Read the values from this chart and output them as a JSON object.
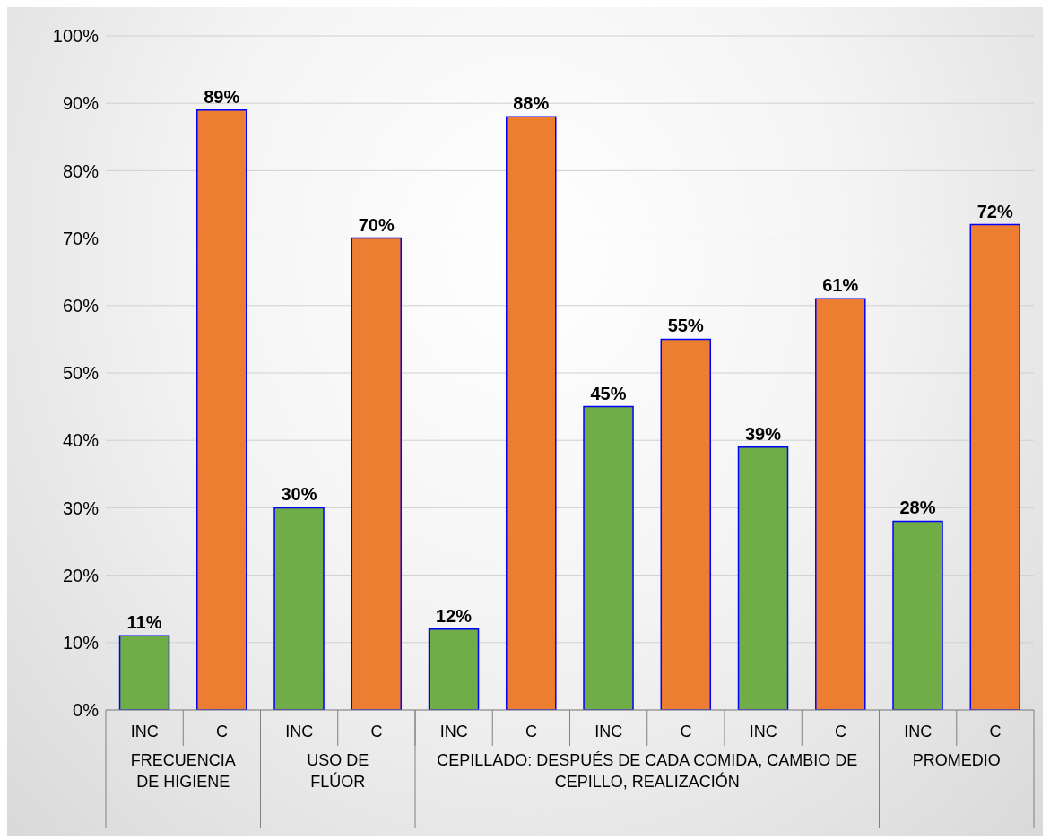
{
  "chart_data": {
    "type": "bar",
    "categories": [
      "INC",
      "C",
      "INC",
      "C",
      "INC",
      "C",
      "INC",
      "C",
      "INC",
      "C",
      "INC",
      "C"
    ],
    "values": [
      11,
      89,
      30,
      70,
      12,
      88,
      45,
      55,
      39,
      61,
      28,
      72
    ],
    "colors": [
      "#70ad47",
      "#ed7d31",
      "#70ad47",
      "#ed7d31",
      "#70ad47",
      "#ed7d31",
      "#70ad47",
      "#ed7d31",
      "#70ad47",
      "#ed7d31",
      "#70ad47",
      "#ed7d31"
    ],
    "value_labels": [
      "11%",
      "89%",
      "30%",
      "70%",
      "12%",
      "88%",
      "45%",
      "55%",
      "39%",
      "61%",
      "28%",
      "72%"
    ],
    "annotations": [
      "FRECUENCIA DE HIGIENE",
      "USO DE FLÚOR",
      "CEPILLADO: DESPUÉS DE CADA COMIDA, CAMBIO DE CEPILLO, REALIZACIÓN",
      "PROMEDIO"
    ],
    "ylim": [
      0,
      100
    ],
    "yticks": [
      {
        "value": 0,
        "label": "0%"
      },
      {
        "value": 10,
        "label": "10%"
      },
      {
        "value": 20,
        "label": "20%"
      },
      {
        "value": 30,
        "label": "30%"
      },
      {
        "value": 40,
        "label": "40%"
      },
      {
        "value": 50,
        "label": "50%"
      },
      {
        "value": 60,
        "label": "60%"
      },
      {
        "value": 70,
        "label": "70%"
      },
      {
        "value": 80,
        "label": "80%"
      },
      {
        "value": 90,
        "label": "90%"
      },
      {
        "value": 100,
        "label": "100%"
      }
    ],
    "grid": "y"
  }
}
